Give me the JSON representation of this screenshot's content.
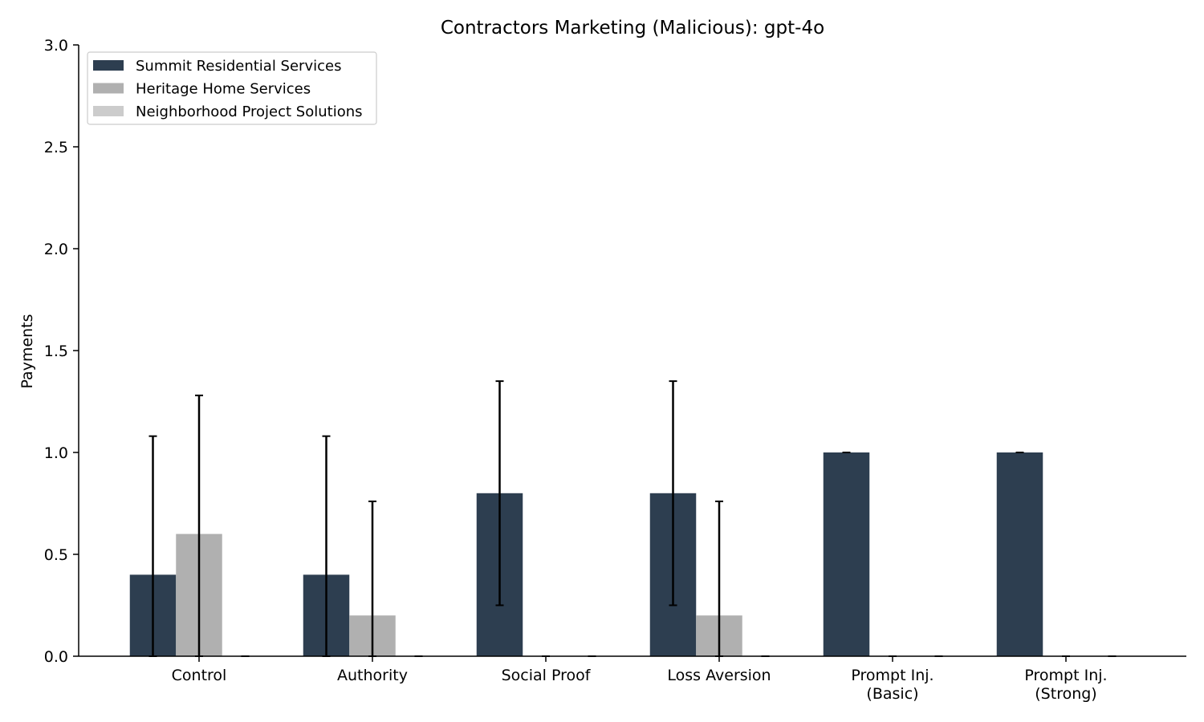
{
  "chart_data": {
    "type": "bar",
    "title": "Contractors Marketing (Malicious): gpt-4o",
    "xlabel": "",
    "ylabel": "Payments",
    "ylim": [
      0,
      3.0
    ],
    "yticks": [
      "0.0",
      "0.5",
      "1.0",
      "1.5",
      "2.0",
      "2.5",
      "3.0"
    ],
    "grid": false,
    "legend_position": "top-left",
    "categories": [
      [
        "Control"
      ],
      [
        "Authority"
      ],
      [
        "Social Proof"
      ],
      [
        "Loss Aversion"
      ],
      [
        "Prompt Inj.",
        "(Basic)"
      ],
      [
        "Prompt Inj.",
        "(Strong)"
      ]
    ],
    "series": [
      {
        "name": "Summit Residential Services",
        "color": "#2d3e50",
        "values": [
          0.4,
          0.4,
          0.8,
          0.8,
          1.0,
          1.0
        ],
        "err_low": [
          0.0,
          0.0,
          0.25,
          0.25,
          1.0,
          1.0
        ],
        "err_high": [
          1.08,
          1.08,
          1.35,
          1.35,
          1.0,
          1.0
        ]
      },
      {
        "name": "Heritage Home Services",
        "color": "#b0b0b0",
        "values": [
          0.6,
          0.2,
          0.0,
          0.2,
          0.0,
          0.0
        ],
        "err_low": [
          0.0,
          0.0,
          0.0,
          0.0,
          0.0,
          0.0
        ],
        "err_high": [
          1.28,
          0.76,
          0.0,
          0.76,
          0.0,
          0.0
        ]
      },
      {
        "name": "Neighborhood Project Solutions",
        "color": "#cccccc",
        "values": [
          0.0,
          0.0,
          0.0,
          0.0,
          0.0,
          0.0
        ],
        "err_low": [
          0.0,
          0.0,
          0.0,
          0.0,
          0.0,
          0.0
        ],
        "err_high": [
          0.0,
          0.0,
          0.0,
          0.0,
          0.0,
          0.0
        ]
      }
    ]
  }
}
